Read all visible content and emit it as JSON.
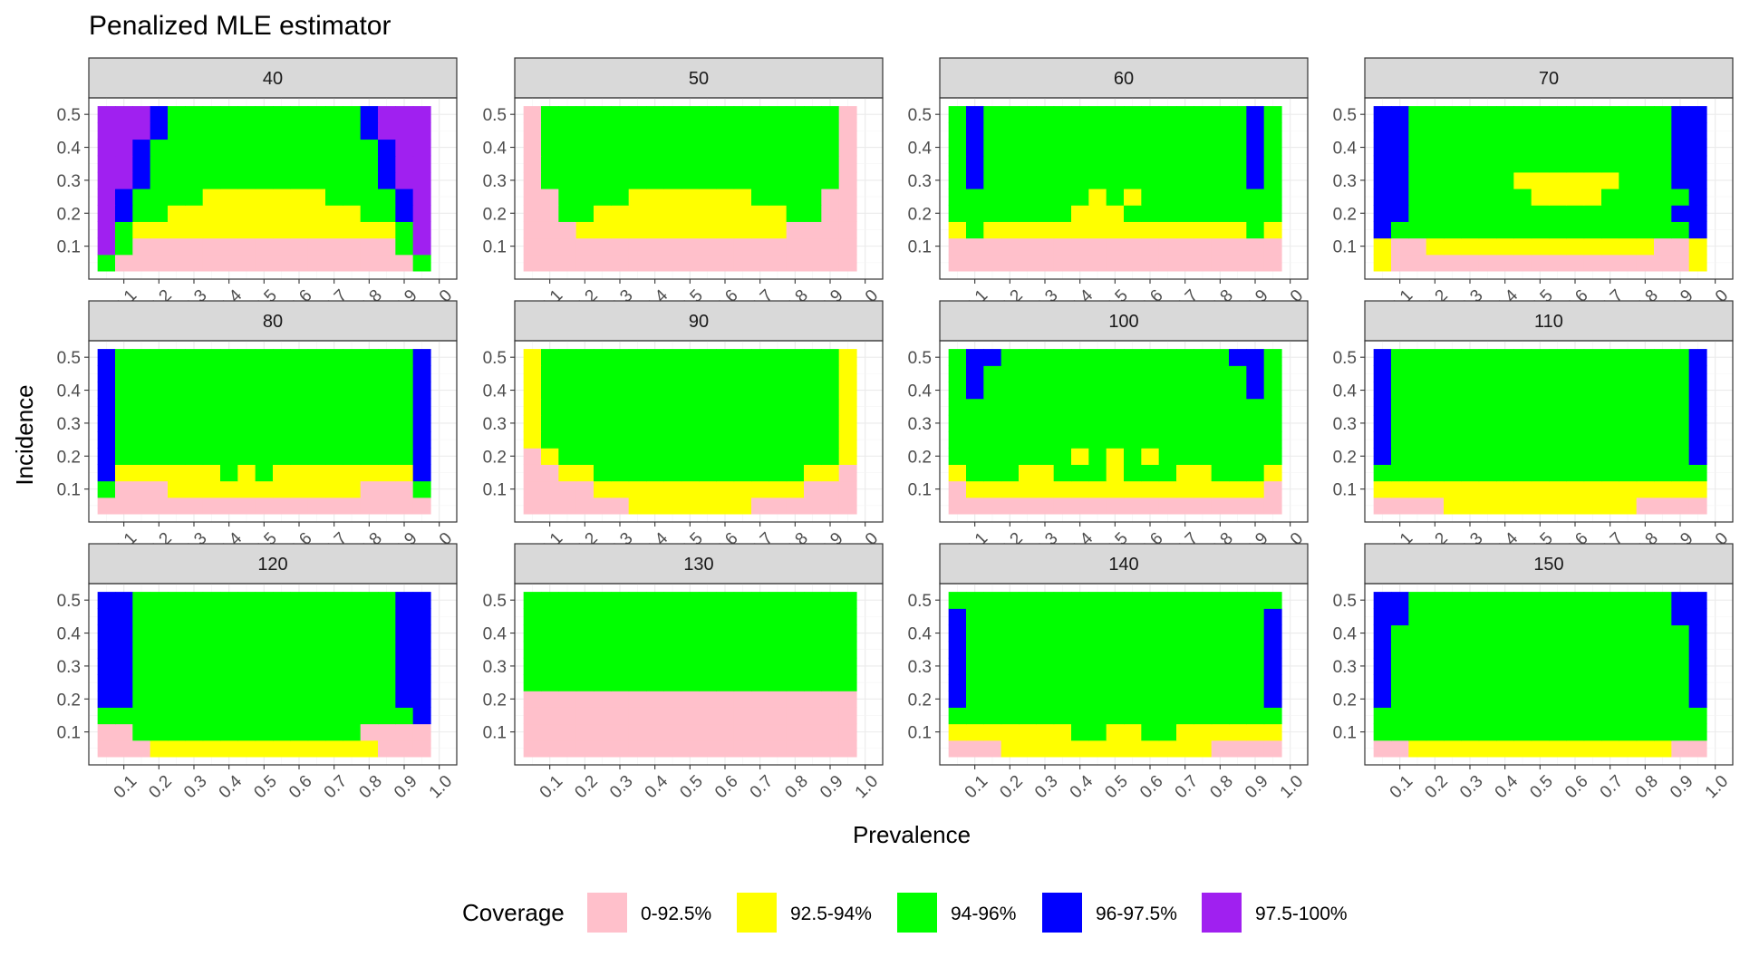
{
  "chart_data": {
    "type": "heatmap",
    "title": "Penalized MLE estimator",
    "xlabel": "Prevalence",
    "ylabel": "Incidence",
    "x_ticks": [
      0.1,
      0.2,
      0.3,
      0.4,
      0.5,
      0.6,
      0.7,
      0.8,
      0.9,
      1.0
    ],
    "x_tick_labels": [
      "0.1",
      "0.2",
      "0.3",
      "0.4",
      "0.5",
      "0.6",
      "0.7",
      "0.8",
      "0.9",
      "1.0"
    ],
    "y_ticks": [
      0.1,
      0.2,
      0.3,
      0.4,
      0.5
    ],
    "y_tick_labels": [
      "0.1",
      "0.2",
      "0.3",
      "0.4",
      "0.5"
    ],
    "xlim": [
      0.0,
      1.05
    ],
    "ylim": [
      0.0,
      0.55
    ],
    "prevalence_values": [
      0.05,
      0.1,
      0.15,
      0.2,
      0.25,
      0.3,
      0.35,
      0.4,
      0.45,
      0.5,
      0.55,
      0.6,
      0.65,
      0.7,
      0.75,
      0.8,
      0.85,
      0.9,
      0.95
    ],
    "incidence_values": [
      0.05,
      0.1,
      0.15,
      0.2,
      0.25,
      0.3,
      0.35,
      0.4,
      0.45,
      0.5
    ],
    "legend": {
      "title": "Coverage",
      "placement": "bottom",
      "categories": [
        {
          "code": 0,
          "label": "0-92.5%",
          "color": "#ffc0cb"
        },
        {
          "code": 1,
          "label": "92.5-94%",
          "color": "#ffff00"
        },
        {
          "code": 2,
          "label": "94-96%",
          "color": "#00ff00"
        },
        {
          "code": 3,
          "label": "96-97.5%",
          "color": "#0000ff"
        },
        {
          "code": 4,
          "label": "97.5-100%",
          "color": "#a020f0"
        }
      ]
    },
    "facet_note": "Each panel is one sample size; rows of the grid run from incidence 0.05 (first row) to 0.5 (last row); each row lists coverage category codes for the 19 prevalence values.",
    "panels": [
      {
        "label": "40",
        "grid": [
          "2000000000000000002",
          "4200000000000000024",
          "4211111111111111124",
          "4322111111111112234",
          "4322221111111222234",
          "4432222222222222344",
          "4432222222222222344",
          "4432222222222222344",
          "4443222222222223444",
          "4443222222222223444"
        ]
      },
      {
        "label": "50",
        "grid": [
          "0000000000000000000",
          "0000000000000000000",
          "0001111111111110000",
          "0022111111111112200",
          "0022221111111222200",
          "0222222222222222220",
          "0222222222222222220",
          "0222222222222222220",
          "0222222222222222220",
          "0222222222222222220"
        ]
      },
      {
        "label": "60",
        "grid": [
          "0000000000000000000",
          "0000000000000000000",
          "1211111111111111121",
          "2222222111222222222",
          "2222222212122222222",
          "2322222222222222232",
          "2322222222222222232",
          "2322222222222222232",
          "2322222222222222232",
          "2322222222222222232"
        ]
      },
      {
        "label": "70",
        "grid": [
          "1000000000000000001",
          "1001111111111111001",
          "3222222222222222223",
          "3322222222222222233",
          "3322222221111222223",
          "3322222211111122233",
          "3322222222222222233",
          "3322222222222222233",
          "3322222222222222233",
          "3322222222222222233"
        ]
      },
      {
        "label": "80",
        "grid": [
          "0000000000000000000",
          "2000111111111110002",
          "3111111212111111113",
          "3222222222222222223",
          "3222222222222222223",
          "3222222222222222223",
          "3222222222222222223",
          "3222222222222222223",
          "3222222222222222223",
          "3222222222222222223"
        ]
      },
      {
        "label": "90",
        "grid": [
          "0000001111111000000",
          "0000111111111111000",
          "0011222222222222110",
          "0122222222222222221",
          "1222222222222222221",
          "1222222222222222221",
          "1222222222222222221",
          "1222222222222222221",
          "1222222222222222221",
          "1222222222222222221"
        ]
      },
      {
        "label": "100",
        "grid": [
          "0000000000000000000",
          "0111111111111111110",
          "1222112221222112221",
          "2222222121212222222",
          "2222222222222222222",
          "2222222222222222222",
          "2222222222222222222",
          "2322222222222222232",
          "2322222222222222232",
          "2332222222222222332"
        ]
      },
      {
        "label": "110",
        "grid": [
          "0000111111111110000",
          "1111111111111111111",
          "2222222222222222222",
          "3222222222222222223",
          "3222222222222222223",
          "3222222222222222223",
          "3222222222222222223",
          "3222222222222222223",
          "3222222222222222223",
          "3222222222222222223"
        ]
      },
      {
        "label": "120",
        "grid": [
          "0001111111111111000",
          "0022222222222220000",
          "2222222222222222223",
          "3322222222222222233",
          "3322222222222222233",
          "3322222222222222233",
          "3322222222222222233",
          "3322222222222222233",
          "3322222222222222233",
          "3322222222222222233"
        ]
      },
      {
        "label": "130",
        "grid": [
          "0000000000000000000",
          "0000000000000000000",
          "0000000000000000000",
          "0000000000000000000",
          "2222222222222222222",
          "2222222222222222222",
          "2222222222222222222",
          "2222222222222222222",
          "2222222222222222222",
          "2222222222222222222"
        ]
      },
      {
        "label": "140",
        "grid": [
          "0001111111111110000",
          "1111111221122111111",
          "2222222222222222222",
          "3222222222222222223",
          "3222222222222222223",
          "3222222222222222223",
          "3222222222222222223",
          "3222222222222222223",
          "3222222222222222223",
          "2222222222222222222"
        ]
      },
      {
        "label": "150",
        "grid": [
          "0011111111111111100",
          "2222222222222222222",
          "2222222222222222222",
          "3222222222222222223",
          "3222222222222222223",
          "3222222222222222223",
          "3222222222222222223",
          "3222222222222222223",
          "3322222222222222233",
          "3322222222222222233"
        ]
      }
    ]
  }
}
